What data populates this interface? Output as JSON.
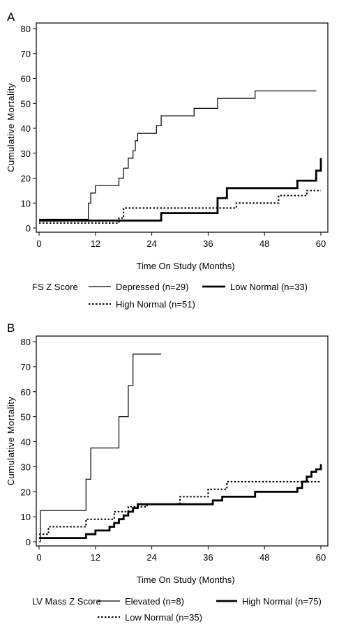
{
  "chart_data": [
    {
      "type": "line",
      "step": true,
      "panel_label": "A",
      "xlabel": "Time On Study (Months)",
      "ylabel": "Cumulative Mortality",
      "xlim": [
        0,
        60
      ],
      "ylim": [
        0,
        80
      ],
      "xticks": [
        "0",
        "12",
        "24",
        "36",
        "48",
        "60"
      ],
      "yticks": [
        "0",
        "10",
        "20",
        "30",
        "40",
        "50",
        "60",
        "70",
        "80"
      ],
      "grid": false,
      "legend": {
        "title": "FS Z Score",
        "placement": "bottom"
      },
      "series": [
        {
          "name": "Depressed (n=29)",
          "style": "thin-solid",
          "x": [
            0,
            10.3,
            10.5,
            11,
            12,
            16,
            17,
            18,
            19,
            20,
            20.5,
            21,
            24,
            25,
            26,
            33,
            38,
            46,
            59
          ],
          "y": [
            3.5,
            3.5,
            10,
            14,
            17,
            17,
            20,
            24,
            28,
            31,
            35,
            38,
            38,
            41,
            45,
            48,
            52,
            55,
            55
          ]
        },
        {
          "name": "Low Normal (n=33)",
          "style": "thick-solid",
          "x": [
            0,
            17,
            26,
            26.5,
            38,
            39,
            40,
            55,
            59,
            60
          ],
          "y": [
            3,
            3,
            6,
            6,
            12,
            12,
            16,
            19,
            23,
            28
          ]
        },
        {
          "name": "High Normal (n=51)",
          "style": "dotted",
          "x": [
            0,
            16,
            17,
            18,
            27,
            42,
            51,
            57,
            60
          ],
          "y": [
            2,
            2,
            4,
            8,
            8,
            10,
            13,
            15,
            15
          ]
        }
      ]
    },
    {
      "type": "line",
      "step": true,
      "panel_label": "B",
      "xlabel": "Time On Study (Months)",
      "ylabel": "Cumulative Mortality",
      "xlim": [
        0,
        60
      ],
      "ylim": [
        0,
        80
      ],
      "xticks": [
        "0",
        "12",
        "24",
        "36",
        "48",
        "60"
      ],
      "yticks": [
        "0",
        "10",
        "20",
        "30",
        "40",
        "50",
        "60",
        "70",
        "80"
      ],
      "grid": false,
      "legend": {
        "title": "LV Mass Z Score",
        "placement": "bottom"
      },
      "series": [
        {
          "name": "Elevated (n=8)",
          "style": "thin-solid",
          "x": [
            0,
            0.3,
            7,
            10,
            11,
            17,
            19,
            19.5,
            20,
            26
          ],
          "y": [
            0,
            12.5,
            12.5,
            25,
            37.5,
            50,
            62.5,
            62.5,
            75,
            75
          ]
        },
        {
          "name": "High Normal (n=75)",
          "style": "thick-solid",
          "x": [
            0,
            10,
            12,
            15,
            16,
            17,
            18,
            19,
            20,
            21,
            22,
            25,
            37,
            39,
            46,
            55,
            56,
            57,
            58,
            59,
            60
          ],
          "y": [
            1.5,
            3,
            4.5,
            6,
            7.5,
            9,
            10.5,
            12,
            13.5,
            15,
            15,
            15,
            16.5,
            18,
            20,
            21.5,
            24,
            26,
            28,
            29,
            31
          ]
        },
        {
          "name": "Low Normal (n=35)",
          "style": "dotted",
          "x": [
            0,
            2,
            5,
            10,
            12,
            16,
            19,
            23,
            30,
            36,
            40,
            55,
            60
          ],
          "y": [
            3,
            6,
            6,
            9,
            9,
            12,
            14,
            15,
            18,
            21,
            24,
            24,
            24
          ]
        }
      ]
    }
  ]
}
